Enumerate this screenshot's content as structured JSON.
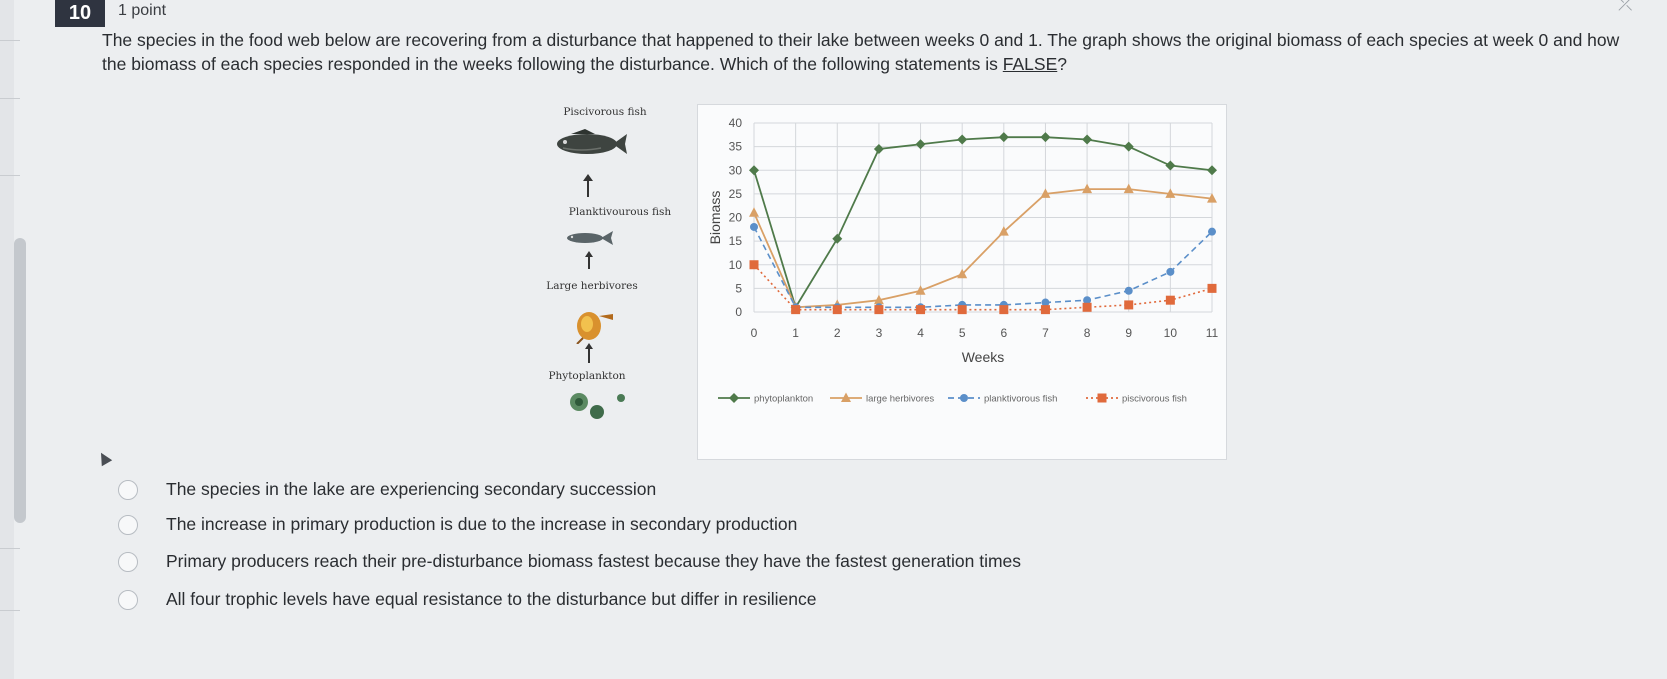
{
  "question": {
    "number": "10",
    "points": "1 point",
    "text_part1": "The species in the food web below are recovering from a disturbance that happened to their lake between weeks 0 and 1. The graph shows the original biomass of each species at week 0 and how the biomass of each species responded in the weeks following the disturbance. Which of the following statements is ",
    "false_word": "FALSE",
    "text_part2": "?"
  },
  "food_web": {
    "labels": [
      "Piscivorous fish",
      "Planktivourous fish",
      "Large herbivores",
      "Phytoplankton"
    ],
    "icons": [
      "piscivorous-fish-icon",
      "planktivorous-fish-icon",
      "large-herbivore-icon",
      "phytoplankton-icon"
    ]
  },
  "chart_data": {
    "type": "line",
    "xlabel": "Weeks",
    "ylabel": "Biomass",
    "x": [
      0,
      1,
      2,
      3,
      4,
      5,
      6,
      7,
      8,
      9,
      10,
      11
    ],
    "ylim": [
      0,
      40
    ],
    "yticks": [
      0,
      5,
      10,
      15,
      20,
      25,
      30,
      35,
      40
    ],
    "grid": true,
    "legend_position": "bottom",
    "series": [
      {
        "name": "phytoplankton",
        "color": "#4f7a4a",
        "marker": "diamond",
        "dash": "solid",
        "values": [
          30,
          1,
          15.5,
          34.5,
          35.5,
          36.5,
          37,
          37,
          36.5,
          35,
          31,
          30
        ]
      },
      {
        "name": "large herbivores",
        "color": "#d9a066",
        "marker": "triangle",
        "dash": "solid",
        "values": [
          21,
          1,
          1.5,
          2.5,
          4.5,
          8,
          17,
          25,
          26,
          26,
          25,
          24
        ]
      },
      {
        "name": "planktivorous fish",
        "color": "#5b8fc9",
        "marker": "circle",
        "dash": "dashed",
        "values": [
          18,
          1,
          1,
          1,
          1,
          1.5,
          1.5,
          2,
          2.5,
          4.5,
          8.5,
          17
        ]
      },
      {
        "name": "piscivorous fish",
        "color": "#e06a3c",
        "marker": "square",
        "dash": "dotted",
        "values": [
          10,
          0.5,
          0.5,
          0.5,
          0.5,
          0.5,
          0.5,
          0.5,
          1,
          1.5,
          2.5,
          5
        ]
      }
    ]
  },
  "options": [
    {
      "text": "The species in the lake are experiencing secondary succession"
    },
    {
      "text": "The increase in primary production is due to the increase in secondary production"
    },
    {
      "text": "Primary producers reach their pre-disturbance biomass fastest because they have the fastest generation times"
    },
    {
      "text": "All four trophic levels have equal resistance to the disturbance but differ in resilience"
    }
  ]
}
